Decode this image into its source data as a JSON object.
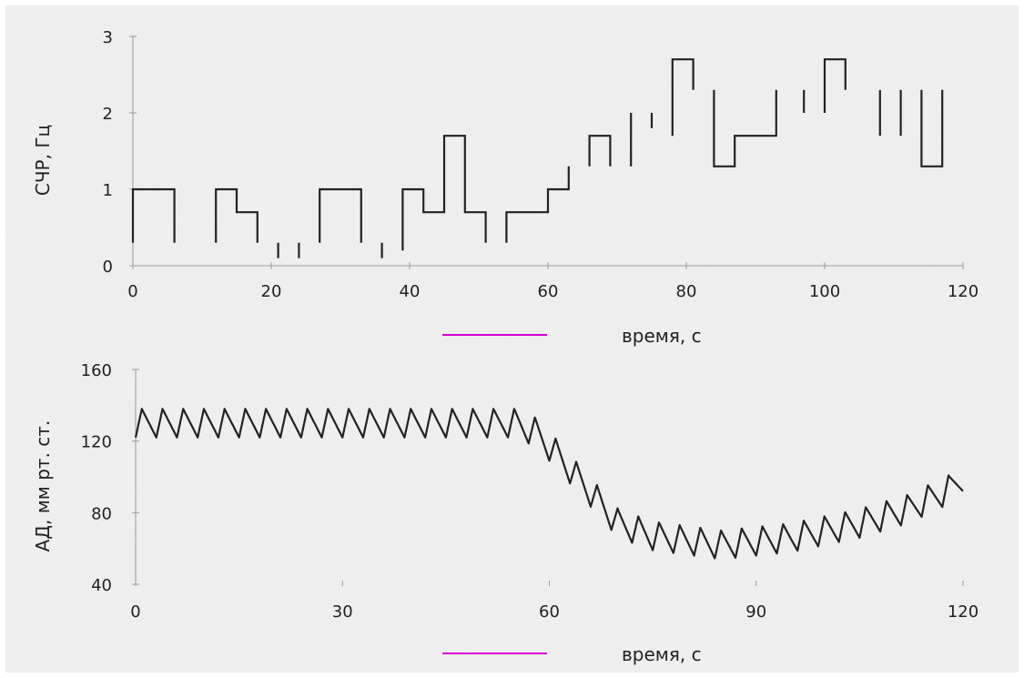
{
  "colors": {
    "background": "#ececec",
    "trace": "#222222",
    "axis": "#9a9a9a",
    "marker": "#d400d4"
  },
  "chart_data": [
    {
      "type": "line",
      "title": "",
      "xlabel": "время, с",
      "ylabel": "СЧР, Гц",
      "xlim": [
        0,
        120
      ],
      "ylim": [
        0,
        3
      ],
      "xticks": [
        "0",
        "20",
        "40",
        "60",
        "80",
        "100",
        "120"
      ],
      "yticks": [
        "0",
        "1",
        "2",
        "3"
      ],
      "grid": false,
      "step_segments": [
        [
          [
            0,
            0.3
          ],
          [
            0,
            1
          ],
          [
            6,
            1
          ],
          [
            6,
            0.3
          ]
        ],
        [
          [
            12,
            0.3
          ],
          [
            12,
            1
          ],
          [
            15,
            1
          ],
          [
            15,
            0.7
          ],
          [
            18,
            0.7
          ],
          [
            18,
            0.3
          ]
        ],
        [
          [
            21,
            0.3
          ],
          [
            21,
            0.1
          ]
        ],
        [
          [
            24,
            0.3
          ],
          [
            24,
            0.1
          ]
        ],
        [
          [
            27,
            0.3
          ],
          [
            27,
            1
          ],
          [
            33,
            1
          ],
          [
            33,
            0.3
          ]
        ],
        [
          [
            36,
            0.1
          ],
          [
            36,
            0.3
          ]
        ],
        [
          [
            39,
            0.2
          ],
          [
            39,
            1
          ],
          [
            42,
            1
          ],
          [
            42,
            0.7
          ],
          [
            45,
            0.7
          ],
          [
            45,
            1.7
          ],
          [
            48,
            1.7
          ],
          [
            48,
            0.7
          ],
          [
            51,
            0.7
          ],
          [
            51,
            0.3
          ]
        ],
        [
          [
            54,
            0.3
          ],
          [
            54,
            0.7
          ],
          [
            60,
            0.7
          ],
          [
            60,
            1
          ],
          [
            63,
            1
          ],
          [
            63,
            1.3
          ]
        ],
        [
          [
            66,
            1.3
          ],
          [
            66,
            1.7
          ],
          [
            69,
            1.7
          ],
          [
            69,
            1.3
          ]
        ],
        [
          [
            72,
            1.3
          ],
          [
            72,
            2
          ]
        ],
        [
          [
            75,
            1.8
          ],
          [
            75,
            2
          ]
        ],
        [
          [
            78,
            1.7
          ],
          [
            78,
            2.7
          ],
          [
            81,
            2.7
          ],
          [
            81,
            2.3
          ]
        ],
        [
          [
            84,
            2.3
          ],
          [
            84,
            1.3
          ],
          [
            87,
            1.3
          ],
          [
            87,
            1.7
          ],
          [
            93,
            1.7
          ],
          [
            93,
            2.3
          ]
        ],
        [
          [
            97,
            2.0
          ],
          [
            97,
            2.3
          ]
        ],
        [
          [
            100,
            2.0
          ],
          [
            100,
            2.7
          ],
          [
            103,
            2.7
          ],
          [
            103,
            2.3
          ]
        ],
        [
          [
            108,
            2.3
          ],
          [
            108,
            1.7
          ]
        ],
        [
          [
            111,
            2.3
          ],
          [
            111,
            1.7
          ]
        ],
        [
          [
            114,
            2.3
          ],
          [
            114,
            1.3
          ],
          [
            117,
            1.3
          ],
          [
            117,
            2.3
          ]
        ]
      ]
    },
    {
      "type": "line",
      "title": "",
      "xlabel": "время, с",
      "ylabel": "АД, мм рт. ст.",
      "xlim": [
        0,
        120
      ],
      "ylim": [
        40,
        160
      ],
      "xticks": [
        "0",
        "30",
        "60",
        "90",
        "120"
      ],
      "yticks": [
        "40",
        "80",
        "120",
        "160"
      ],
      "grid": false,
      "wave_period": 3,
      "wave_amplitude": 8,
      "baseline": {
        "x": [
          0,
          55,
          58,
          61,
          64,
          67,
          70,
          75,
          85,
          95,
          105,
          112,
          118,
          120
        ],
        "y": [
          130,
          130,
          125,
          113,
          100,
          87,
          74,
          67,
          62,
          66,
          74,
          82,
          93,
          100
        ]
      }
    }
  ],
  "legend_markers": [
    {
      "label": "время, с"
    },
    {
      "label": "время, с"
    }
  ]
}
